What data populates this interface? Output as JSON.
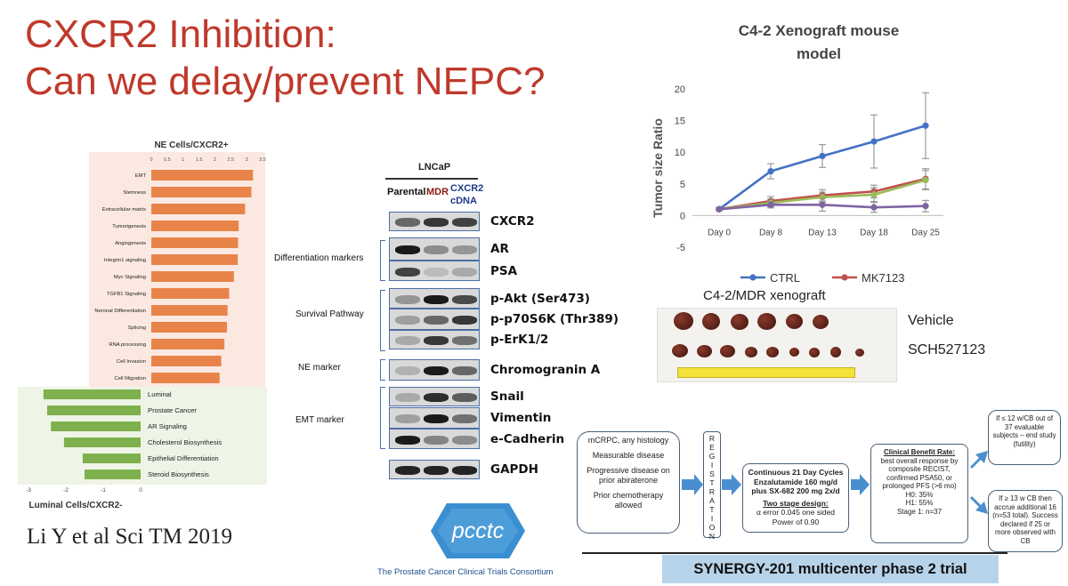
{
  "title": {
    "line1": "CXCR2 Inhibition:",
    "line2": "Can we delay/prevent NEPC?"
  },
  "citation": "Li Y et al Sci TM 2019",
  "barchart": {
    "title_top": "NE Cells/CXCR2+",
    "title_bottom": "Luminal Cells/CXCR2-",
    "top_ticks": [
      "0",
      "0.5",
      "1",
      "1.5",
      "2",
      "2.5",
      "3",
      "3.5"
    ],
    "bottom_ticks": [
      "-3",
      "-2",
      "-1",
      "0"
    ],
    "colors": {
      "up": "#e8844a",
      "down": "#7fb04e",
      "up_bg": "#fbe9e1",
      "down_bg": "#eef4e6"
    }
  },
  "chart_data": [
    {
      "type": "bar",
      "title": "NE Cells/CXCR2+",
      "categories": [
        "EMT",
        "Stemness",
        "Extracellular matrix",
        "Tumorigenesis",
        "Angiogenesis",
        "Integrin1 signaling",
        "Myc Signaling",
        "TGFB1 Signaling",
        "Neronal Differentiation",
        "Splicing",
        "RNA processing",
        "Cell Invasion",
        "Cell Migration"
      ],
      "values": [
        3.2,
        3.15,
        2.95,
        2.75,
        2.73,
        2.72,
        2.6,
        2.45,
        2.4,
        2.38,
        2.3,
        2.2,
        2.15
      ],
      "xlim": [
        0,
        3.5
      ]
    },
    {
      "type": "bar",
      "title": "Luminal Cells/CXCR2-",
      "categories": [
        "Luminal",
        "Prostate Cancer",
        "AR Signaling",
        "Cholesterol Biosynthesis",
        "Epithelial Differentiation",
        "Steroid Biosynthesis"
      ],
      "values": [
        -2.6,
        -2.5,
        -2.4,
        -2.05,
        -1.55,
        -1.5
      ],
      "xlim": [
        -3,
        0
      ]
    },
    {
      "type": "line",
      "title": "C4-2 Xenograft mouse model",
      "ylabel": "Tumor size Ratio",
      "categories": [
        "Day 0",
        "Day 8",
        "Day 13",
        "Day 18",
        "Day 25"
      ],
      "ylim": [
        -5,
        20
      ],
      "yticks": [
        "20",
        "15",
        "10",
        "5",
        "0",
        "-5"
      ],
      "series": [
        {
          "name": "CTRL",
          "color": "#4472c4",
          "values": [
            1.0,
            7.0,
            9.4,
            11.7,
            14.2
          ],
          "err": [
            0.2,
            1.2,
            1.8,
            4.2,
            5.2
          ]
        },
        {
          "name": "MK7123",
          "color": "#c0504d",
          "values": [
            1.0,
            2.3,
            3.2,
            3.8,
            5.8
          ],
          "err": [
            0.2,
            0.7,
            0.9,
            1.0,
            1.6
          ]
        },
        {
          "name": "",
          "color": "#9bbb59",
          "values": [
            1.0,
            2.0,
            2.9,
            3.3,
            5.6
          ],
          "err": [
            0.2,
            0.6,
            0.8,
            1.1,
            1.5
          ]
        },
        {
          "name": "",
          "color": "#8064a2",
          "values": [
            1.0,
            1.7,
            1.7,
            1.3,
            1.5
          ],
          "err": [
            0.2,
            0.5,
            1.0,
            0.8,
            0.9
          ]
        }
      ]
    }
  ],
  "western": {
    "header": "LNCaP",
    "cols": [
      "Parental",
      "MDR",
      "CXCR2",
      "cDNA"
    ],
    "col_colors": {
      "parental": "#111111",
      "mdr": "#8b1a1a",
      "cdna": "#1f3a8a"
    },
    "groups": [
      "Differentiation markers",
      "Survival Pathway",
      "NE marker",
      "EMT marker"
    ],
    "labels": [
      "CXCR2",
      "AR",
      "PSA",
      "p-Akt (Ser473)",
      "p-p70S6K (Thr389)",
      "p-ErK1/2",
      "Chromogranin A",
      "Snail",
      "Vimentin",
      "e-Cadherin",
      "GAPDH"
    ]
  },
  "xenograft": {
    "caption": "C4-2/MDR xenograft",
    "row1": "Vehicle",
    "row2": "SCH527123"
  },
  "pcctc": {
    "logo_text": "pcctc",
    "name": "The Prostate Cancer Clinical Trials Consortium"
  },
  "trial": {
    "box1": {
      "title": "mCRPC, any histology",
      "l1": "Measurable disease",
      "l2": "Progressive disease on prior abiraterone",
      "l3": "Prior chemotherapy allowed"
    },
    "registration": [
      "R",
      "E",
      "G",
      "I",
      "S",
      "T",
      "R",
      "A",
      "T",
      "I",
      "O",
      "N"
    ],
    "box2": {
      "l1": "Continuous 21 Day Cycles",
      "l2": "Enzalutamide 160 mg/d",
      "l3": "plus SX-682 200 mg 2x/d",
      "l4": "Two stage design:",
      "l5": "α error 0.045 one sided",
      "l6": "Power of 0.90"
    },
    "box3": {
      "l1": "Clinical Benefit Rate:",
      "l2": "best overall response by composite RECIST, confirmed PSA50, or prolonged PFS (>6 mo)",
      "l3": "H0:  35%",
      "l4": "H1:  55%",
      "l5": "Stage 1: n=37"
    },
    "box4": "If ≤ 12 w/CB out of 37 evaluable subjects – end study (futility)",
    "box5": "If ≥ 13 w CB then accrue additional 16 (n=53 total). Success declared if 25 or more observed with CB",
    "banner": "SYNERGY-201 multicenter phase 2 trial"
  }
}
